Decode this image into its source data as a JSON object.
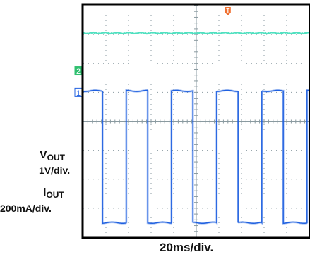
{
  "chart_data": {
    "type": "line",
    "x_divisions": 10,
    "y_divisions": 8,
    "grid": true,
    "timebase": "20ms/div.",
    "colors": {
      "background": "#ffffff",
      "grid": "#8a9aa0",
      "frame": "#000000",
      "trigger": "#f07030",
      "ch2_trace": "#50e0c0",
      "ch1_trace": "#2060e0",
      "ch2_marker": "#30c070",
      "ch1_marker": "#2060e0"
    },
    "trigger_marker": {
      "label": "T",
      "x_div": 6.4
    },
    "channels": [
      {
        "id": "2",
        "name_main": "V",
        "name_sub": "OUT",
        "scale": "1V/div.",
        "ground_div": 5.75,
        "trace": {
          "kind": "flat",
          "level_div": 7.05
        }
      },
      {
        "id": "1",
        "name_main": "I",
        "name_sub": "OUT",
        "scale": "200mA/div.",
        "ground_div": 5.0,
        "trace": {
          "kind": "square",
          "high_div": 5.05,
          "low_div": 0.5,
          "edges_div": [
            0.0,
            0.85,
            1.9,
            2.85,
            3.9,
            4.85,
            5.9,
            6.85,
            7.9,
            8.85,
            9.9,
            10.0
          ],
          "start_level": "high"
        }
      }
    ]
  }
}
